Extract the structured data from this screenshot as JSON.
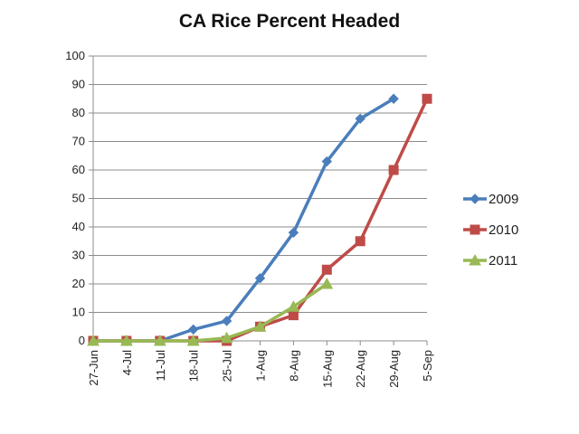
{
  "chart_data": {
    "type": "line",
    "title": "CA Rice Percent Headed",
    "xlabel": "",
    "ylabel": "",
    "categories": [
      "27-Jun",
      "4-Jul",
      "11-Jul",
      "18-Jul",
      "25-Jul",
      "1-Aug",
      "8-Aug",
      "15-Aug",
      "22-Aug",
      "29-Aug",
      "5-Sep"
    ],
    "yticks": [
      "0",
      "10",
      "20",
      "30",
      "40",
      "50",
      "60",
      "70",
      "80",
      "90",
      "100"
    ],
    "ylim": [
      0,
      100
    ],
    "grid": true,
    "legend_position": "right",
    "series": [
      {
        "name": "2009",
        "color": "#4a7ebb",
        "marker": "diamond",
        "values": [
          0,
          0,
          0,
          4,
          7,
          22,
          38,
          63,
          78,
          85,
          null
        ]
      },
      {
        "name": "2010",
        "color": "#be4b48",
        "marker": "square",
        "values": [
          0,
          0,
          0,
          0,
          0,
          5,
          9,
          25,
          35,
          60,
          85
        ]
      },
      {
        "name": "2011",
        "color": "#98b954",
        "marker": "triangle",
        "values": [
          0,
          0,
          0,
          0,
          1,
          5,
          12,
          20,
          null,
          null,
          null
        ]
      }
    ]
  }
}
